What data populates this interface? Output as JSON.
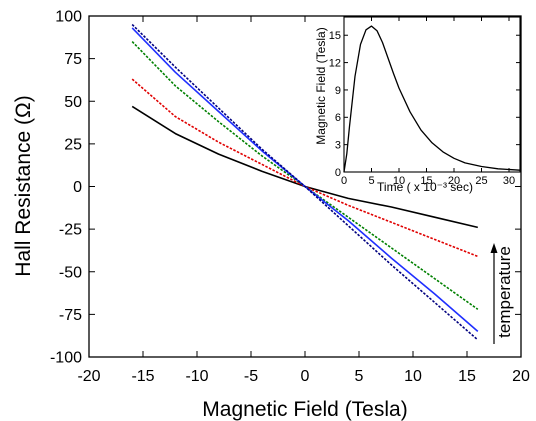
{
  "chart_data": [
    {
      "type": "line",
      "title": "",
      "xlabel": "Magnetic Field (Tesla)",
      "ylabel": "Hall Resistance (Ω)",
      "xlim": [
        -20,
        20
      ],
      "ylim": [
        -100,
        100
      ],
      "xticks": [
        -20,
        -15,
        -10,
        -5,
        0,
        5,
        10,
        15,
        20
      ],
      "yticks": [
        -100,
        -75,
        -50,
        -25,
        0,
        25,
        50,
        75,
        100
      ],
      "grid": false,
      "legend": "none",
      "annotation": "temperature",
      "series": [
        {
          "color": "#000000",
          "style": "solid",
          "x": [
            -16,
            -12,
            -8,
            -4,
            0,
            4,
            8,
            12,
            16
          ],
          "y": [
            47,
            31,
            19,
            9,
            0,
            -7,
            -12,
            -18,
            -24
          ]
        },
        {
          "color": "#e00000",
          "style": "dotted",
          "x": [
            -16,
            -12,
            -8,
            -4,
            0,
            4,
            8,
            12,
            16
          ],
          "y": [
            63,
            41,
            26,
            13,
            0,
            -11,
            -21,
            -31,
            -41
          ]
        },
        {
          "color": "#008000",
          "style": "dotted",
          "x": [
            -16,
            -12,
            -8,
            -4,
            0,
            4,
            8,
            12,
            16
          ],
          "y": [
            85,
            59,
            38,
            18,
            0,
            -18,
            -36,
            -54,
            -72
          ]
        },
        {
          "color": "#1f2fff",
          "style": "solid",
          "x": [
            -16,
            -12,
            -8,
            -4,
            0,
            4,
            8,
            12,
            16
          ],
          "y": [
            93,
            67,
            44,
            21,
            0,
            -20,
            -42,
            -63,
            -85
          ]
        },
        {
          "color": "#00007f",
          "style": "dotted",
          "x": [
            -16,
            -12,
            -8,
            -4,
            0,
            4,
            8,
            12,
            16
          ],
          "y": [
            95,
            70,
            46,
            22,
            0,
            -23,
            -46,
            -68,
            -90
          ]
        }
      ]
    },
    {
      "type": "line",
      "title": "",
      "xlabel": "Time ( x 10⁻³ sec)",
      "ylabel": "Magnetic Field (Tesla)",
      "xlim": [
        0,
        32
      ],
      "ylim": [
        0,
        17
      ],
      "xticks": [
        0,
        5,
        10,
        15,
        20,
        25,
        30
      ],
      "yticks": [
        0,
        3,
        6,
        9,
        12,
        15
      ],
      "grid": false,
      "legend": "none",
      "series": [
        {
          "color": "#000000",
          "style": "solid",
          "x": [
            0,
            0.5,
            1,
            2,
            3,
            4,
            5,
            6,
            7,
            8,
            9,
            10,
            12,
            14,
            16,
            18,
            20,
            22,
            25,
            28,
            32
          ],
          "y": [
            0,
            2.0,
            5.0,
            10.5,
            14.0,
            15.6,
            16.0,
            15.5,
            14.2,
            12.5,
            10.8,
            9.2,
            6.6,
            4.6,
            3.2,
            2.2,
            1.5,
            1.0,
            0.6,
            0.35,
            0.2
          ]
        }
      ]
    }
  ]
}
